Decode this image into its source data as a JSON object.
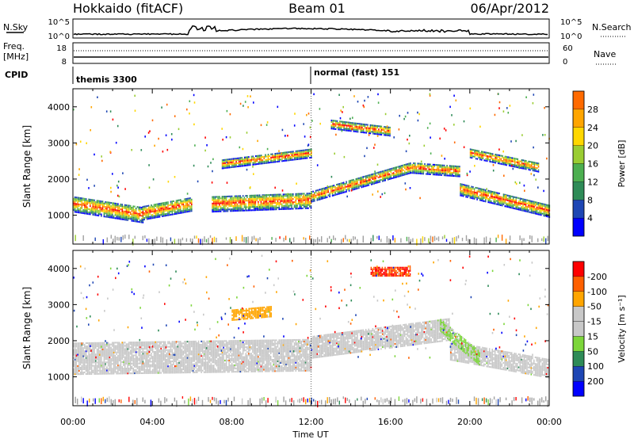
{
  "header": {
    "station": "Hokkaido (fitACF)",
    "beam": "Beam 01",
    "date": "06/Apr/2012"
  },
  "noise_panel": {
    "left_label": "N.Sky",
    "right_label": "N.Search",
    "left_ticks": [
      "10^5",
      "10^0"
    ],
    "right_ticks": [
      "10^5",
      "10^0"
    ]
  },
  "freq_panel": {
    "left_label_1": "Freq.",
    "left_label_2": "[MHz]",
    "right_label": "Nave",
    "left_ticks": [
      "18",
      "8"
    ],
    "right_ticks": [
      "60",
      "0"
    ]
  },
  "cpid_panel": {
    "label": "CPID",
    "modes": [
      {
        "name": "themis 3300",
        "start_h": 0
      },
      {
        "name": "normal (fast) 151",
        "start_h": 12
      }
    ]
  },
  "colors": {
    "power": [
      "#0000ff",
      "#1e46b4",
      "#2e8b57",
      "#4caf50",
      "#9acd32",
      "#ffd700",
      "#ffa500",
      "#ff6a00",
      "#ff0000"
    ],
    "velocity": [
      "#ff0000",
      "#ff6000",
      "#ffa500",
      "#c8c8c8",
      "#c8c8c8",
      "#7cd63a",
      "#2e8b57",
      "#1e46b4",
      "#0000ff"
    ],
    "ground": "#a0a0a0"
  },
  "chart_data": [
    {
      "type": "heatmap",
      "ylabel": "Slant Range [km]",
      "xlabel": "Time UT",
      "xlim": [
        0,
        24
      ],
      "ylim": [
        200,
        4500
      ],
      "x_ticks": [
        "00:00",
        "04:00",
        "08:00",
        "12:00",
        "16:00",
        "20:00",
        "00:00"
      ],
      "y_ticks": [
        1000,
        2000,
        3000,
        4000
      ],
      "colorbar": {
        "label": "Power [dB]",
        "ticks": [
          4,
          8,
          12,
          16,
          20,
          24,
          28
        ]
      },
      "echo_bands": [
        {
          "t_start": 0,
          "t_end": 3.5,
          "r_start": 1300,
          "r_end": 1000,
          "width": 450
        },
        {
          "t_start": 3.5,
          "t_end": 6,
          "r_start": 1050,
          "r_end": 1300,
          "width": 400
        },
        {
          "t_start": 7,
          "t_end": 12,
          "r_start": 1300,
          "r_end": 1400,
          "width": 450
        },
        {
          "t_start": 12,
          "t_end": 17,
          "r_start": 1500,
          "r_end": 2300,
          "width": 300
        },
        {
          "t_start": 17,
          "t_end": 19.5,
          "r_start": 2300,
          "r_end": 2200,
          "width": 300
        },
        {
          "t_start": 19.5,
          "t_end": 24,
          "r_start": 1700,
          "r_end": 1100,
          "width": 350
        },
        {
          "t_start": 7.5,
          "t_end": 12,
          "r_start": 2400,
          "r_end": 2700,
          "width": 250
        },
        {
          "t_start": 13,
          "t_end": 16,
          "r_start": 3500,
          "r_end": 3300,
          "width": 250
        },
        {
          "t_start": 20,
          "t_end": 23.5,
          "r_start": 2700,
          "r_end": 2300,
          "width": 250
        }
      ]
    },
    {
      "type": "heatmap",
      "ylabel": "Slant Range [km]",
      "xlabel": "Time UT",
      "xlim": [
        0,
        24
      ],
      "ylim": [
        200,
        4500
      ],
      "x_ticks": [
        "00:00",
        "04:00",
        "08:00",
        "12:00",
        "16:00",
        "20:00",
        "00:00"
      ],
      "y_ticks": [
        1000,
        2000,
        3000,
        4000
      ],
      "colorbar": {
        "label": "Velocity [m s⁻¹]",
        "ticks": [
          -200,
          -100,
          -50,
          -15,
          15,
          50,
          100,
          200
        ]
      },
      "echo_bands": [
        {
          "t_start": 0,
          "t_end": 12,
          "r_start": 1500,
          "r_end": 1600,
          "width": 900,
          "v": 0
        },
        {
          "t_start": 12,
          "t_end": 19,
          "r_start": 1800,
          "r_end": 2300,
          "width": 600,
          "v": 0
        },
        {
          "t_start": 19,
          "t_end": 24,
          "r_start": 1700,
          "r_end": 1200,
          "width": 500,
          "v": 0
        },
        {
          "t_start": 18.5,
          "t_end": 20.5,
          "r_start": 2400,
          "r_end": 1500,
          "width": 400,
          "v": 30
        },
        {
          "t_start": 8,
          "t_end": 10,
          "r_start": 2700,
          "r_end": 2800,
          "width": 300,
          "v": -40
        },
        {
          "t_start": 15,
          "t_end": 17,
          "r_start": 3900,
          "r_end": 3900,
          "width": 250,
          "v": -150
        }
      ]
    }
  ],
  "x_axis_label": "Time UT"
}
